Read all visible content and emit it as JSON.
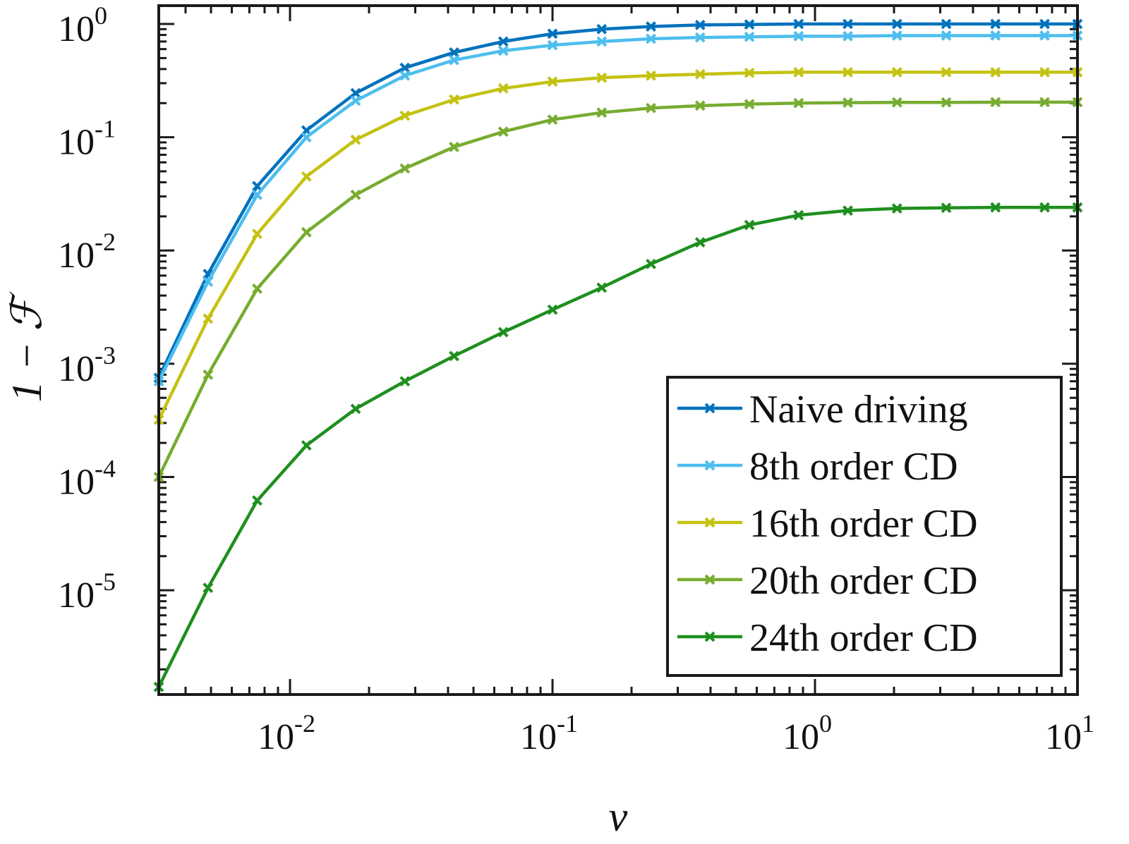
{
  "chart_data": {
    "type": "line",
    "xscale": "log",
    "yscale": "log",
    "xlim": [
      0.003162,
      10
    ],
    "ylim": [
      1.2e-06,
      1
    ],
    "xticks": [
      {
        "value": 0.01,
        "base": "10",
        "exp": "-2"
      },
      {
        "value": 0.1,
        "base": "10",
        "exp": "-1"
      },
      {
        "value": 1,
        "base": "10",
        "exp": "0"
      },
      {
        "value": 10,
        "base": "10",
        "exp": "1"
      }
    ],
    "yticks": [
      {
        "value": 1,
        "base": "10",
        "exp": "0"
      },
      {
        "value": 0.1,
        "base": "10",
        "exp": "-1"
      },
      {
        "value": 0.01,
        "base": "10",
        "exp": "-2"
      },
      {
        "value": 0.001,
        "base": "10",
        "exp": "-3"
      },
      {
        "value": 0.0001,
        "base": "10",
        "exp": "-4"
      },
      {
        "value": 1e-05,
        "base": "10",
        "exp": "-5"
      }
    ],
    "xlabel": "v",
    "ylabel": "1 − ℱ",
    "grid": false,
    "legend_position": "bottom-right",
    "x": [
      0.003162,
      0.00487,
      0.007499,
      0.011548,
      0.017783,
      0.027384,
      0.04217,
      0.064938,
      0.1,
      0.153993,
      0.237137,
      0.365174,
      0.562341,
      0.865964,
      1.333521,
      2.053525,
      3.162278,
      4.869675,
      7.498942,
      10
    ],
    "series": [
      {
        "name": "Naive driving",
        "color": "#0072BD",
        "values": [
          0.00075,
          0.0062,
          0.037,
          0.115,
          0.245,
          0.41,
          0.56,
          0.7,
          0.82,
          0.9,
          0.95,
          0.98,
          0.99,
          1.0,
          1.0,
          1.0,
          1.0,
          1.0,
          1.0,
          1.0
        ]
      },
      {
        "name": "8th order CD",
        "color": "#4DBEEE",
        "values": [
          0.0007,
          0.0053,
          0.031,
          0.1,
          0.21,
          0.35,
          0.48,
          0.58,
          0.65,
          0.7,
          0.74,
          0.76,
          0.77,
          0.78,
          0.78,
          0.79,
          0.79,
          0.79,
          0.79,
          0.79
        ]
      },
      {
        "name": "16th order CD",
        "color": "#C4C212",
        "values": [
          0.00032,
          0.0025,
          0.014,
          0.045,
          0.095,
          0.155,
          0.215,
          0.27,
          0.31,
          0.335,
          0.35,
          0.36,
          0.37,
          0.375,
          0.375,
          0.375,
          0.375,
          0.375,
          0.375,
          0.375
        ]
      },
      {
        "name": "20th order CD",
        "color": "#77AC30",
        "values": [
          0.0001,
          0.0008,
          0.0046,
          0.0145,
          0.031,
          0.053,
          0.082,
          0.112,
          0.143,
          0.165,
          0.181,
          0.19,
          0.196,
          0.2,
          0.202,
          0.203,
          0.203,
          0.204,
          0.204,
          0.204
        ]
      },
      {
        "name": "24th order CD",
        "color": "#1E8F1E",
        "values": [
          1.4e-06,
          1.05e-05,
          6.2e-05,
          0.00019,
          0.0004,
          0.0007,
          0.00117,
          0.0019,
          0.003,
          0.0047,
          0.0076,
          0.0118,
          0.0168,
          0.0205,
          0.0225,
          0.0235,
          0.0238,
          0.024,
          0.024,
          0.024
        ]
      }
    ]
  }
}
